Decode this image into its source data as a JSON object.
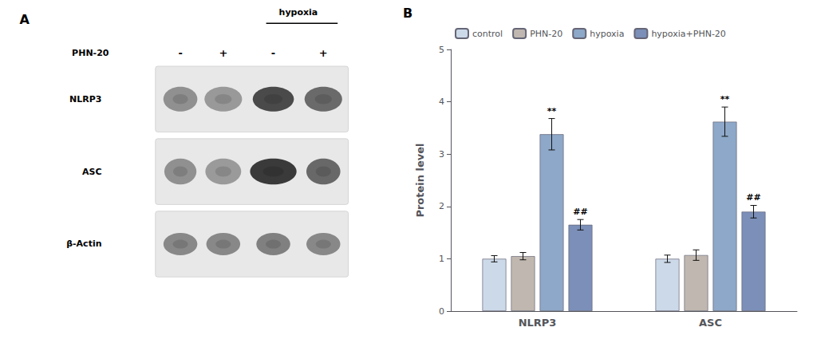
{
  "chart_data": [
    {
      "type": "blot",
      "panel": "A",
      "bracket": "hypoxia",
      "treatment": "PHN-20",
      "signs": [
        "-",
        "+",
        "-",
        "+"
      ],
      "rows": [
        "NLRP3",
        "ASC",
        "β-Actin"
      ]
    },
    {
      "type": "bar",
      "panel": "B",
      "categories": [
        "NLRP3",
        "ASC"
      ],
      "series": [
        {
          "name": "control",
          "color": "#ccd9e8",
          "values": [
            1.0,
            1.0
          ],
          "errors": [
            0.06,
            0.07
          ]
        },
        {
          "name": "PHN-20",
          "color": "#c0b8b0",
          "values": [
            1.05,
            1.07
          ],
          "errors": [
            0.07,
            0.1
          ]
        },
        {
          "name": "hypoxia",
          "color": "#8da8c8",
          "values": [
            3.38,
            3.62
          ],
          "errors": [
            0.3,
            0.28
          ]
        },
        {
          "name": "hypoxia+PHN-20",
          "color": "#7b8fb8",
          "values": [
            1.65,
            1.9
          ],
          "errors": [
            0.1,
            0.12
          ]
        }
      ],
      "ylabel": "Protein level",
      "ylim": [
        0,
        5
      ],
      "yticks": [
        0,
        1,
        2,
        3,
        4,
        5
      ],
      "legend": "top",
      "grid": false,
      "annotations": [
        {
          "text": "**",
          "category": "NLRP3",
          "series": "hypoxia"
        },
        {
          "text": "##",
          "category": "NLRP3",
          "series": "hypoxia+PHN-20"
        },
        {
          "text": "**",
          "category": "ASC",
          "series": "hypoxia"
        },
        {
          "text": "##",
          "category": "ASC",
          "series": "hypoxia+PHN-20"
        }
      ]
    }
  ]
}
